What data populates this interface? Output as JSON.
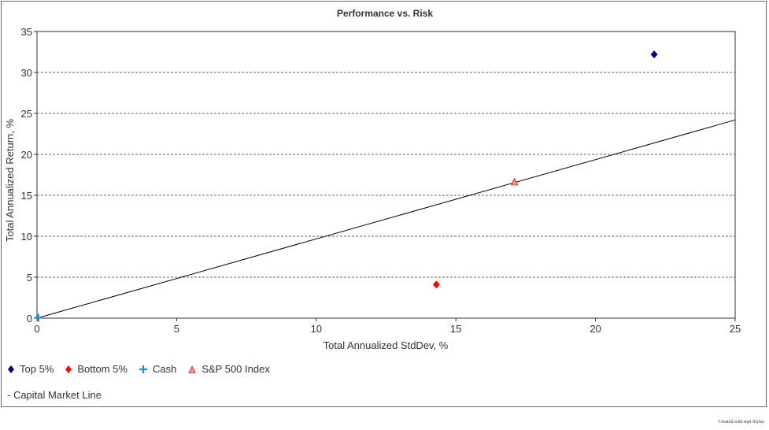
{
  "chart_data": {
    "type": "scatter",
    "title": "Performance vs. Risk",
    "xlabel": "Total Annualized StdDev, %",
    "ylabel": "Total Annualized Return, %",
    "xlim": [
      0,
      25
    ],
    "ylim": [
      0,
      35
    ],
    "x_ticks": [
      0,
      5,
      10,
      15,
      20,
      25
    ],
    "y_ticks": [
      0,
      5,
      10,
      15,
      20,
      25,
      30,
      35
    ],
    "grid": "horizontal dashed",
    "legend_position": "bottom-left",
    "series": [
      {
        "name": "Top 5%",
        "marker": "diamond",
        "color": "#000080",
        "x": [
          22.1
        ],
        "y": [
          32.2
        ]
      },
      {
        "name": "Bottom 5%",
        "marker": "diamond",
        "color": "#ff0000",
        "x": [
          14.3
        ],
        "y": [
          4.1
        ]
      },
      {
        "name": "Cash",
        "marker": "plus",
        "color": "#1e90c8",
        "x": [
          0.05
        ],
        "y": [
          0.05
        ]
      },
      {
        "name": "S&P 500 Index",
        "marker": "triangle",
        "color": "#e05050",
        "x": [
          17.1
        ],
        "y": [
          16.6
        ]
      }
    ],
    "lines": [
      {
        "name": "Capital Market Line",
        "color": "#000000",
        "x": [
          0,
          25
        ],
        "y": [
          0,
          24.2
        ]
      }
    ]
  },
  "legend": {
    "items": [
      "Top 5%",
      "Bottom 5%",
      "Cash",
      "S&P 500 Index"
    ],
    "line_item": "- Capital Market Line"
  },
  "credit": "Created with mpi Stylus"
}
